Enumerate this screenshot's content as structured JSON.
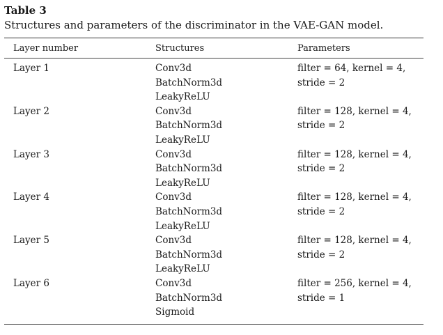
{
  "caption": {
    "label": "Table 3",
    "title": "Structures and parameters of the discriminator in the VAE-GAN model."
  },
  "columns": [
    "Layer number",
    "Structures",
    "Parameters"
  ],
  "rows": [
    {
      "layer": "Layer 1",
      "structures": [
        "Conv3d",
        "BatchNorm3d",
        "LeakyReLU"
      ],
      "parameters": [
        "filter = 64, kernel = 4,",
        "stride = 2"
      ]
    },
    {
      "layer": "Layer 2",
      "structures": [
        "Conv3d",
        "BatchNorm3d",
        "LeakyReLU"
      ],
      "parameters": [
        "filter = 128, kernel = 4,",
        "stride = 2"
      ]
    },
    {
      "layer": "Layer 3",
      "structures": [
        "Conv3d",
        "BatchNorm3d",
        "LeakyReLU"
      ],
      "parameters": [
        "filter = 128, kernel = 4,",
        "stride = 2"
      ]
    },
    {
      "layer": "Layer 4",
      "structures": [
        "Conv3d",
        "BatchNorm3d",
        "LeakyReLU"
      ],
      "parameters": [
        "filter = 128, kernel = 4,",
        "stride = 2"
      ]
    },
    {
      "layer": "Layer 5",
      "structures": [
        "Conv3d",
        "BatchNorm3d",
        "LeakyReLU"
      ],
      "parameters": [
        "filter = 128, kernel = 4,",
        "stride = 2"
      ]
    },
    {
      "layer": "Layer 6",
      "structures": [
        "Conv3d",
        "BatchNorm3d",
        "Sigmoid"
      ],
      "parameters": [
        "filter = 256, kernel = 4,",
        "stride = 1"
      ]
    }
  ]
}
